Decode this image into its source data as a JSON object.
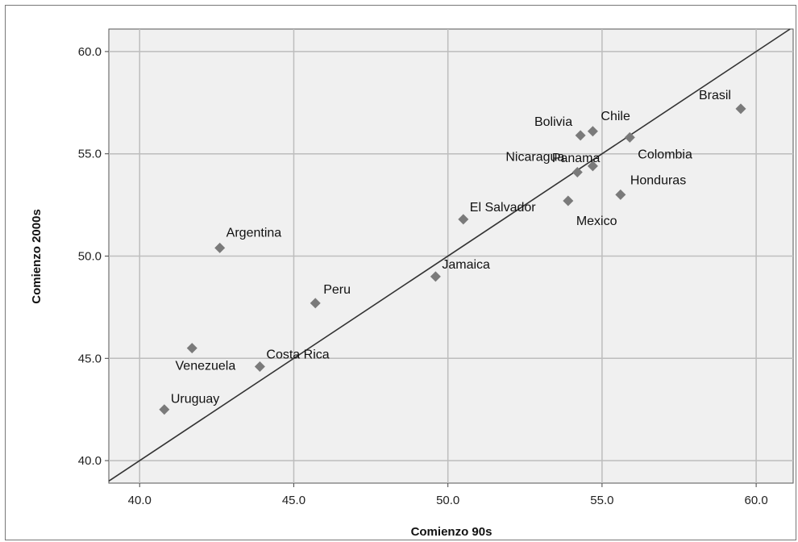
{
  "chart_data": {
    "type": "scatter",
    "title": "",
    "xlabel": "Comienzo 90s",
    "ylabel": "Comienzo 2000s",
    "xlim": [
      39.0,
      61.2
    ],
    "ylim": [
      38.9,
      61.1
    ],
    "xticks": [
      "40.0",
      "45.0",
      "50.0",
      "55.0",
      "60.0"
    ],
    "yticks": [
      "40.0",
      "45.0",
      "50.0",
      "55.0",
      "60.0"
    ],
    "xtick_values": [
      40,
      45,
      50,
      55,
      60
    ],
    "ytick_values": [
      40,
      45,
      50,
      55,
      60
    ],
    "grid": true,
    "reference_line": "y = x",
    "colors": {
      "plot_background": "#f0f0f0",
      "grid": "#bdbdbd",
      "marker": "#7a7a7a",
      "line": "#333333"
    },
    "points": [
      {
        "label": "Argentina",
        "x": 42.6,
        "y": 50.4
      },
      {
        "label": "Bolivia",
        "x": 54.3,
        "y": 55.9
      },
      {
        "label": "Brasil",
        "x": 59.5,
        "y": 57.2
      },
      {
        "label": "Chile",
        "x": 54.7,
        "y": 56.1
      },
      {
        "label": "Colombia",
        "x": 55.9,
        "y": 55.8
      },
      {
        "label": "Costa Rica",
        "x": 43.9,
        "y": 44.6
      },
      {
        "label": "El Salvador",
        "x": 50.5,
        "y": 51.8
      },
      {
        "label": "Honduras",
        "x": 55.6,
        "y": 53.0
      },
      {
        "label": "Jamaica",
        "x": 49.6,
        "y": 49.0
      },
      {
        "label": "Mexico",
        "x": 53.9,
        "y": 52.7
      },
      {
        "label": "Nicaragua",
        "x": 54.2,
        "y": 54.1
      },
      {
        "label": "Panama",
        "x": 54.7,
        "y": 54.4
      },
      {
        "label": "Peru",
        "x": 45.7,
        "y": 47.7
      },
      {
        "label": "Uruguay",
        "x": 40.8,
        "y": 42.5
      },
      {
        "label": "Venezuela",
        "x": 41.7,
        "y": 45.5
      }
    ]
  }
}
